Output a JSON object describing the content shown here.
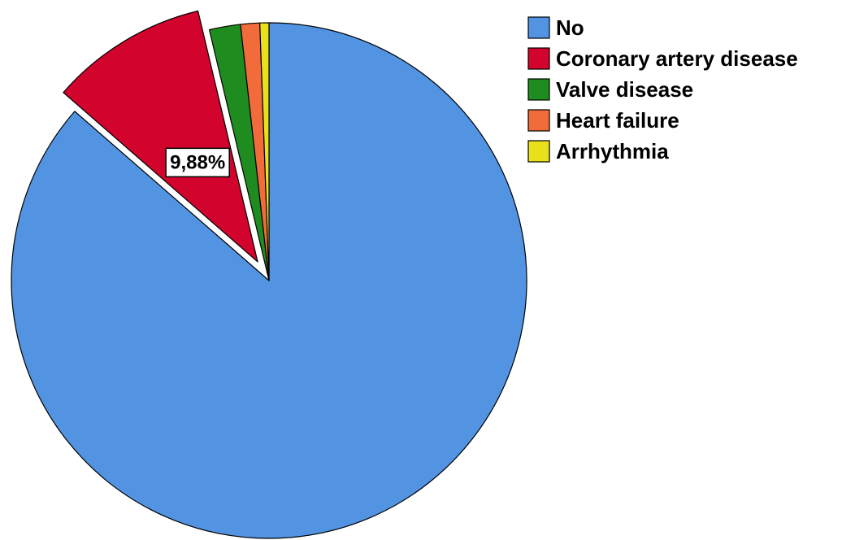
{
  "chart_data": {
    "type": "pie",
    "title": "",
    "legend_position": "top-right",
    "start_angle_deg": 0,
    "direction": "clockwise",
    "slices": [
      {
        "label": "No",
        "value": 86.4,
        "color": "#5294E2",
        "exploded": false
      },
      {
        "label": "Coronary artery disease",
        "value": 9.88,
        "color": "#D2042D",
        "exploded": true,
        "data_label": "9,88%"
      },
      {
        "label": "Valve disease",
        "value": 1.95,
        "color": "#1E8C1E",
        "exploded": false
      },
      {
        "label": "Heart failure",
        "value": 1.2,
        "color": "#F26B3A",
        "exploded": false
      },
      {
        "label": "Arrhythmia",
        "value": 0.57,
        "color": "#E8E01A",
        "exploded": false
      }
    ]
  }
}
